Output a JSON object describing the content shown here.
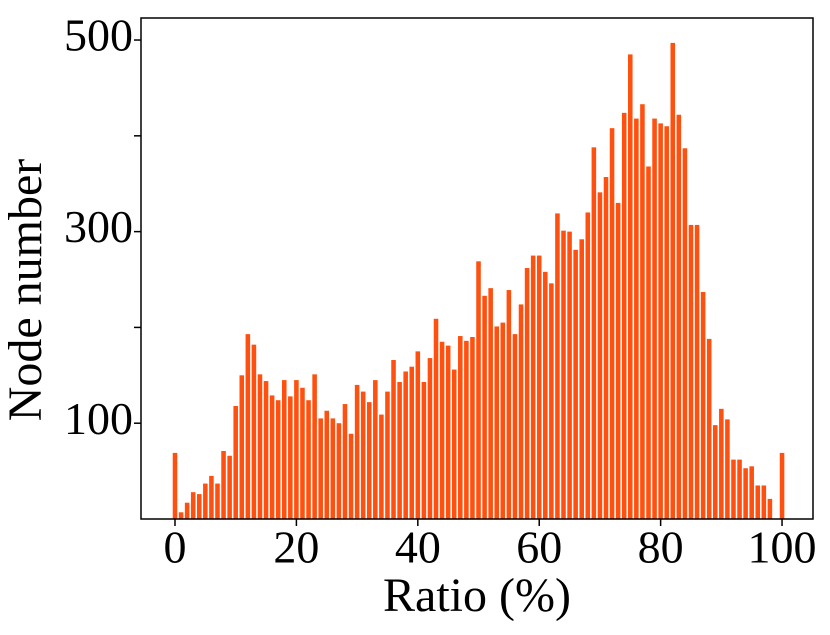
{
  "chart_data": {
    "type": "bar",
    "xlabel": "Ratio (%)",
    "ylabel": "Node number",
    "color": "#ff5010",
    "x": [
      0,
      1,
      2,
      3,
      4,
      5,
      6,
      7,
      8,
      9,
      10,
      11,
      12,
      13,
      14,
      15,
      16,
      17,
      18,
      19,
      20,
      21,
      22,
      23,
      24,
      25,
      26,
      27,
      28,
      29,
      30,
      31,
      32,
      33,
      34,
      35,
      36,
      37,
      38,
      39,
      40,
      41,
      42,
      43,
      44,
      45,
      46,
      47,
      48,
      49,
      50,
      51,
      52,
      53,
      54,
      55,
      56,
      57,
      58,
      59,
      60,
      61,
      62,
      63,
      64,
      65,
      66,
      67,
      68,
      69,
      70,
      71,
      72,
      73,
      74,
      75,
      76,
      77,
      78,
      79,
      80,
      81,
      82,
      83,
      84,
      85,
      86,
      87,
      88,
      89,
      90,
      91,
      92,
      93,
      94,
      95,
      96,
      97,
      98,
      99,
      100
    ],
    "values": [
      69,
      7,
      17,
      28,
      26,
      37,
      45,
      37,
      71,
      66,
      118,
      150,
      193,
      182,
      151,
      144,
      129,
      124,
      145,
      128,
      145,
      137,
      124,
      151,
      105,
      113,
      105,
      100,
      120,
      89,
      140,
      133,
      122,
      145,
      109,
      133,
      166,
      143,
      154,
      159,
      175,
      143,
      168,
      209,
      185,
      181,
      156,
      191,
      186,
      190,
      269,
      233,
      241,
      201,
      205,
      239,
      193,
      224,
      262,
      275,
      275,
      258,
      246,
      319,
      301,
      300,
      281,
      292,
      320,
      388,
      341,
      357,
      408,
      330,
      424,
      485,
      418,
      433,
      368,
      418,
      413,
      410,
      497,
      422,
      387,
      307,
      307,
      237,
      188,
      98,
      115,
      104,
      62,
      62,
      53,
      55,
      35,
      35,
      21,
      0,
      69
    ],
    "xlim": [
      -5.6,
      105.1
    ],
    "ylim": [
      0,
      523
    ],
    "xticks": [
      0,
      20,
      40,
      60,
      80,
      100
    ],
    "yticks": [
      100,
      300,
      500
    ],
    "minor_yticks": [
      200,
      400
    ]
  }
}
